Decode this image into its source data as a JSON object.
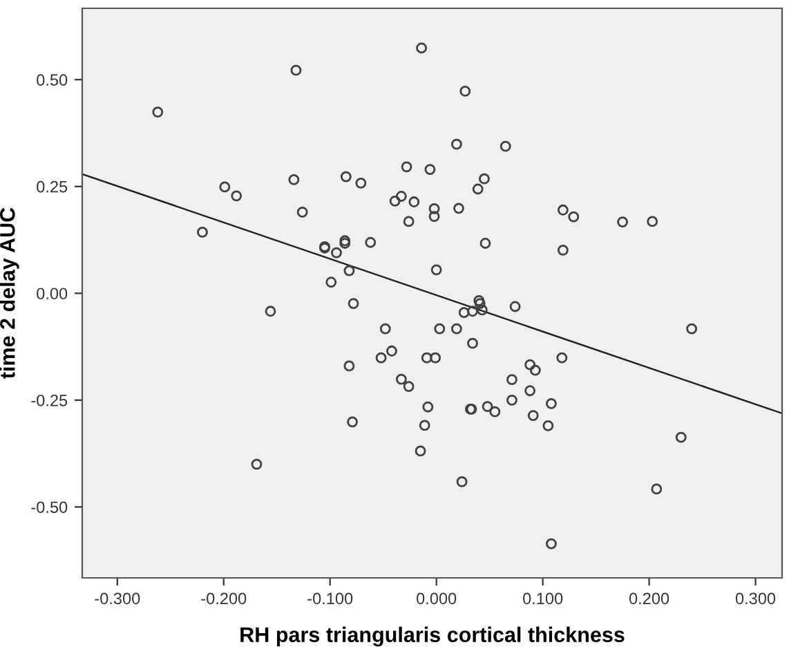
{
  "chart_data": {
    "type": "scatter",
    "xlabel": "RH pars triangularis cortical thickness",
    "ylabel": "time 2 delay AUC",
    "xlim": [
      -0.333,
      0.325
    ],
    "ylim": [
      -0.666,
      0.667
    ],
    "xticks": [
      {
        "value": -0.3,
        "label": "-0.300"
      },
      {
        "value": -0.2,
        "label": "-0.200"
      },
      {
        "value": -0.1,
        "label": "-0.100"
      },
      {
        "value": 0,
        "label": "0.000"
      },
      {
        "value": 0.1,
        "label": "0.100"
      },
      {
        "value": 0.2,
        "label": "0.200"
      },
      {
        "value": 0.3,
        "label": "0.300"
      }
    ],
    "yticks": [
      {
        "value": -0.5,
        "label": "-0.50"
      },
      {
        "value": -0.25,
        "label": "-0.25"
      },
      {
        "value": 0,
        "label": "0.00"
      },
      {
        "value": 0.25,
        "label": "0.25"
      },
      {
        "value": 0.5,
        "label": "0.50"
      }
    ],
    "grid": false,
    "legend": false,
    "series": [
      {
        "color": "#404040",
        "marker": "circle",
        "x": [
          -0.262,
          -0.132,
          -0.199,
          -0.188,
          -0.22,
          -0.134,
          -0.126,
          -0.085,
          -0.071,
          -0.028,
          -0.039,
          -0.033,
          -0.021,
          -0.026,
          -0.105,
          -0.105,
          -0.086,
          -0.086,
          -0.094,
          -0.062,
          -0.099,
          -0.082,
          -0.078,
          -0.156,
          -0.048,
          -0.014,
          0.027,
          0.019,
          0.065,
          -0.006,
          0.045,
          0.039,
          -0.002,
          -0.002,
          0.021,
          0.119,
          0.129,
          0.175,
          0.203,
          0.119,
          0.046,
          0.0,
          0.04,
          0.041,
          0.026,
          0.034,
          0.043,
          0.074,
          0.003,
          0.019,
          0.24,
          -0.052,
          -0.042,
          -0.082,
          -0.033,
          -0.026,
          -0.079,
          -0.169,
          -0.009,
          -0.001,
          0.034,
          -0.008,
          -0.011,
          -0.015,
          0.024,
          0.032,
          0.033,
          0.048,
          0.055,
          0.071,
          0.071,
          0.088,
          0.093,
          0.088,
          0.091,
          0.108,
          0.105,
          0.118,
          0.108,
          0.207,
          0.23
        ],
        "values": [
          0.424,
          0.522,
          0.249,
          0.228,
          0.143,
          0.266,
          0.19,
          0.273,
          0.258,
          0.296,
          0.216,
          0.227,
          0.214,
          0.168,
          0.109,
          0.106,
          0.123,
          0.117,
          0.095,
          0.119,
          0.026,
          0.053,
          -0.024,
          -0.042,
          -0.083,
          0.574,
          0.473,
          0.349,
          0.344,
          0.29,
          0.268,
          0.244,
          0.198,
          0.18,
          0.199,
          0.195,
          0.179,
          0.167,
          0.168,
          0.101,
          0.117,
          0.055,
          -0.017,
          -0.024,
          -0.045,
          -0.042,
          -0.039,
          -0.031,
          -0.083,
          -0.083,
          -0.083,
          -0.151,
          -0.135,
          -0.17,
          -0.201,
          -0.218,
          -0.301,
          -0.4,
          -0.151,
          -0.151,
          -0.117,
          -0.266,
          -0.309,
          -0.369,
          -0.441,
          -0.271,
          -0.271,
          -0.265,
          -0.277,
          -0.202,
          -0.25,
          -0.167,
          -0.18,
          -0.228,
          -0.286,
          -0.258,
          -0.31,
          -0.151,
          -0.586,
          -0.458,
          -0.337
        ]
      },
      {
        "type": "line",
        "marker": "none",
        "color": "#202020",
        "x": [
          -0.333,
          0.325
        ],
        "values": [
          0.279,
          -0.281
        ]
      }
    ]
  }
}
